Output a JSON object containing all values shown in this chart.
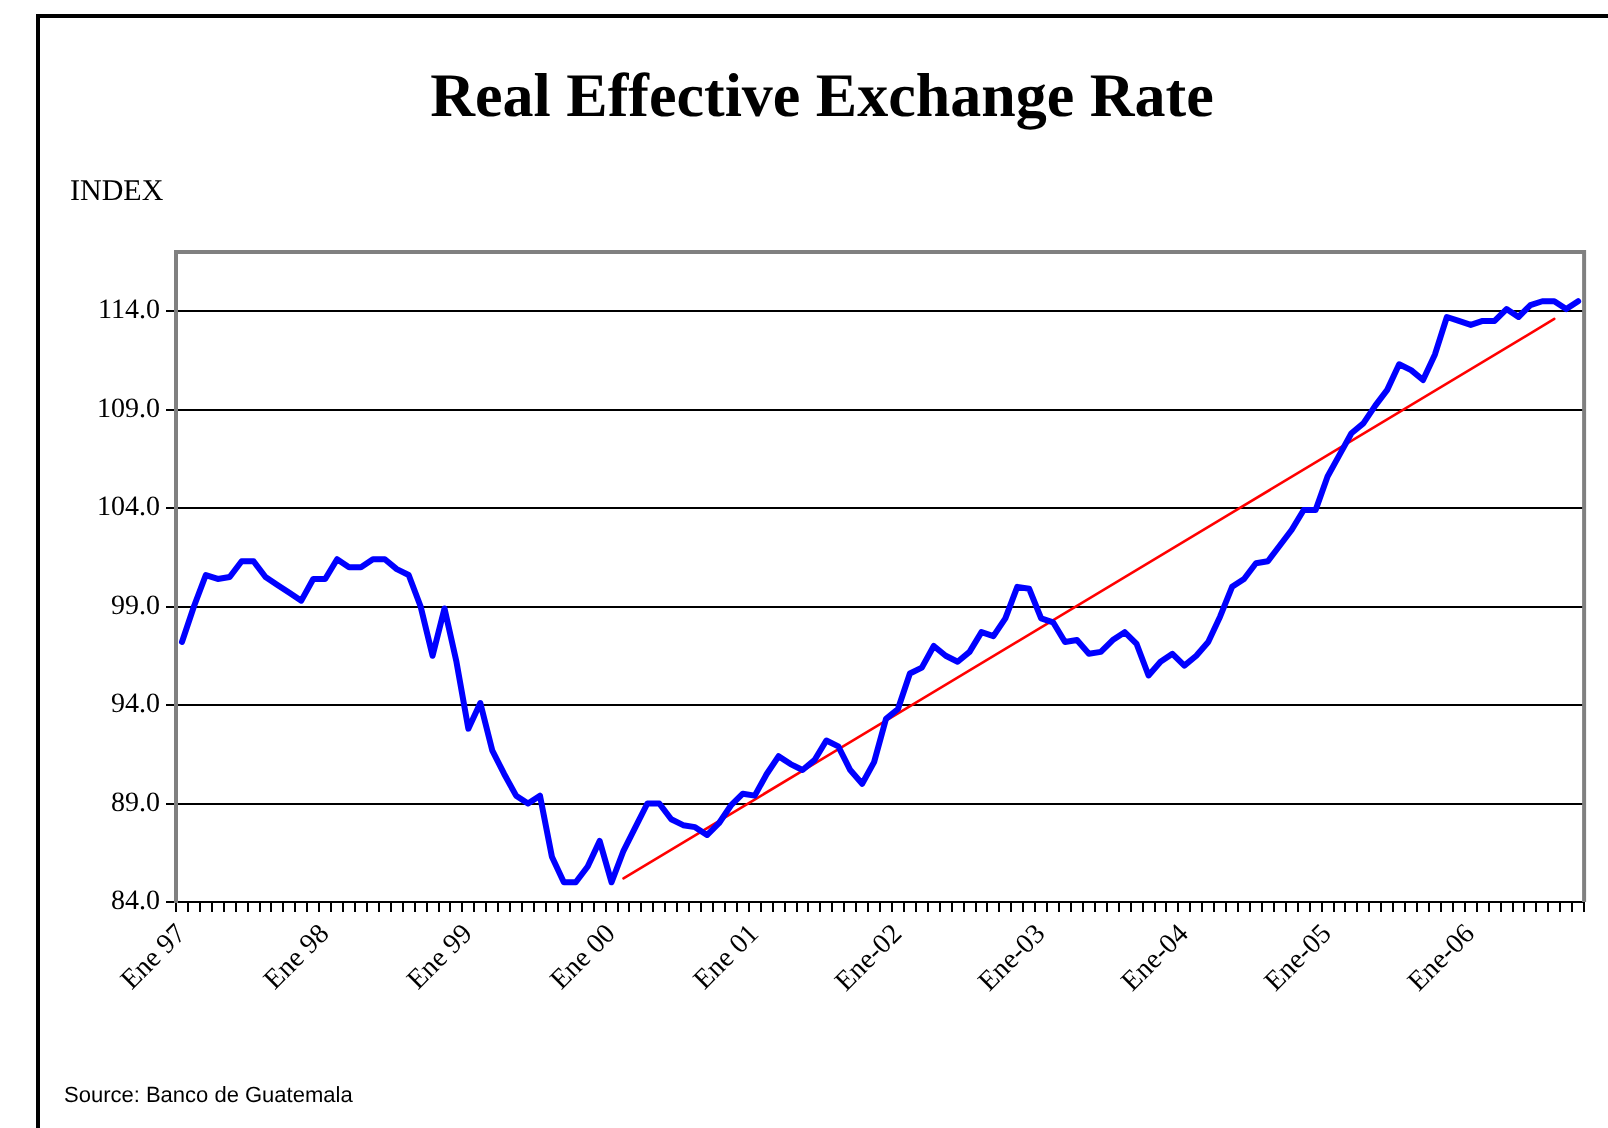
{
  "chart_data": {
    "type": "line",
    "title": "Real Effective Exchange Rate",
    "ylabel": "INDEX",
    "annotations": [
      "Source: Banco de Guatemala"
    ],
    "categories": [
      "Ene 97",
      null,
      null,
      null,
      null,
      null,
      null,
      null,
      null,
      null,
      null,
      null,
      "Ene 98",
      null,
      null,
      null,
      null,
      null,
      null,
      null,
      null,
      null,
      null,
      null,
      "Ene 99",
      null,
      null,
      null,
      null,
      null,
      null,
      null,
      null,
      null,
      null,
      null,
      "Ene 00",
      null,
      null,
      null,
      null,
      null,
      null,
      null,
      null,
      null,
      null,
      null,
      "Ene 01",
      null,
      null,
      null,
      null,
      null,
      null,
      null,
      null,
      null,
      null,
      null,
      "Ene-02",
      null,
      null,
      null,
      null,
      null,
      null,
      null,
      null,
      null,
      null,
      null,
      "Ene-03",
      null,
      null,
      null,
      null,
      null,
      null,
      null,
      null,
      null,
      null,
      null,
      "Ene-04",
      null,
      null,
      null,
      null,
      null,
      null,
      null,
      null,
      null,
      null,
      null,
      "Ene-05",
      null,
      null,
      null,
      null,
      null,
      null,
      null,
      null,
      null,
      null,
      null,
      "Ene-06",
      null,
      null,
      null,
      null,
      null,
      null,
      null,
      null,
      null
    ],
    "series": [
      {
        "color": "#0000ff",
        "values": [
          97.2,
          99.0,
          100.6,
          100.4,
          100.5,
          101.3,
          101.3,
          100.5,
          100.1,
          99.7,
          99.3,
          100.4,
          100.4,
          101.4,
          101.0,
          101.0,
          101.4,
          101.4,
          100.9,
          100.6,
          99.0,
          96.5,
          98.9,
          96.2,
          92.8,
          94.1,
          91.7,
          90.5,
          89.4,
          89.0,
          89.4,
          86.3,
          85.0,
          85.0,
          85.8,
          87.1,
          85.0,
          86.6,
          87.8,
          89.0,
          89.0,
          88.2,
          87.9,
          87.8,
          87.4,
          88.0,
          88.9,
          89.5,
          89.4,
          90.5,
          91.4,
          91.0,
          90.7,
          91.2,
          92.2,
          91.9,
          90.7,
          90.0,
          91.1,
          93.3,
          93.8,
          95.6,
          95.9,
          97.0,
          96.5,
          96.2,
          96.7,
          97.7,
          97.5,
          98.4,
          100.0,
          99.9,
          98.4,
          98.2,
          97.2,
          97.3,
          96.6,
          96.7,
          97.3,
          97.7,
          97.1,
          95.5,
          96.2,
          96.6,
          96.0,
          96.5,
          97.2,
          98.5,
          100.0,
          100.4,
          101.2,
          101.3,
          102.1,
          102.9,
          103.9,
          103.9,
          105.6,
          106.7,
          107.8,
          108.3,
          109.2,
          110.0,
          111.3,
          111.0,
          110.5,
          111.8,
          113.7,
          113.5,
          113.3,
          113.5,
          113.5,
          114.1,
          113.7,
          114.3,
          114.5,
          114.5,
          114.1,
          114.5
        ]
      },
      {
        "type": "line",
        "color": "#ff0000",
        "values": [
          null,
          null,
          null,
          null,
          null,
          null,
          null,
          null,
          null,
          null,
          null,
          null,
          null,
          null,
          null,
          null,
          null,
          null,
          null,
          null,
          null,
          null,
          null,
          null,
          null,
          null,
          null,
          null,
          null,
          null,
          null,
          null,
          null,
          null,
          null,
          null,
          null,
          85.2,
          null,
          null,
          null,
          null,
          null,
          null,
          null,
          null,
          null,
          null,
          null,
          null,
          null,
          null,
          null,
          null,
          null,
          null,
          null,
          null,
          null,
          null,
          null,
          null,
          null,
          null,
          null,
          null,
          null,
          null,
          null,
          null,
          null,
          null,
          null,
          null,
          null,
          null,
          null,
          null,
          null,
          null,
          null,
          null,
          null,
          null,
          null,
          null,
          null,
          null,
          null,
          null,
          null,
          null,
          null,
          null,
          null,
          null,
          null,
          null,
          null,
          null,
          null,
          null,
          null,
          null,
          null,
          null,
          null,
          null,
          null,
          null,
          null,
          null,
          null,
          null,
          null,
          113.6,
          null,
          null
        ]
      }
    ],
    "ylim": [
      84,
      117
    ],
    "yticks": [
      {
        "value": 84,
        "label": "84.0"
      },
      {
        "value": 89,
        "label": "89.0"
      },
      {
        "value": 94,
        "label": "94.0"
      },
      {
        "value": 99,
        "label": "99.0"
      },
      {
        "value": 104,
        "label": "104.0"
      },
      {
        "value": 109,
        "label": "109.0"
      },
      {
        "value": 114,
        "label": "114.0"
      }
    ],
    "grid": "y",
    "legend": false,
    "marker": "none",
    "line_style": "solid"
  }
}
